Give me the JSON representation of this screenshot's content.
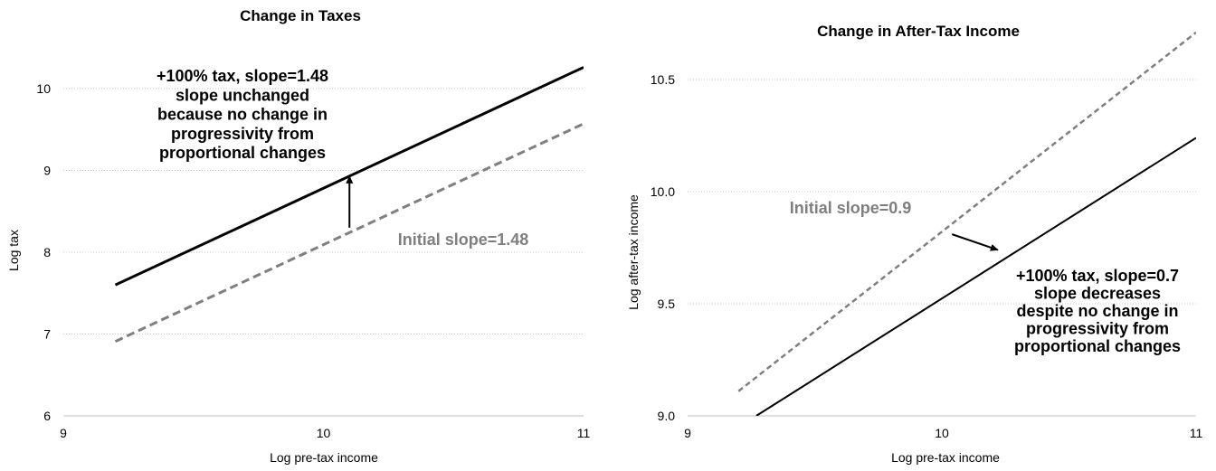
{
  "chart_data": [
    {
      "type": "line",
      "title": "Change in Taxes",
      "xlabel": "Log pre-tax income",
      "ylabel": "Log tax",
      "xlim": [
        9,
        11
      ],
      "ylim": [
        6,
        10.5
      ],
      "xticks": [
        9,
        10,
        11
      ],
      "yticks": [
        6,
        7,
        8,
        9,
        10
      ],
      "xtick_labels": [
        "9",
        "10",
        "11"
      ],
      "ytick_labels": [
        "6",
        "7",
        "8",
        "9",
        "10"
      ],
      "grid": "horizontal dotted",
      "series": [
        {
          "style": "solid",
          "color": "#000000",
          "x": [
            9.2,
            11
          ],
          "y": [
            7.6,
            10.26
          ]
        },
        {
          "style": "dashed",
          "color": "#7f7f7f",
          "x": [
            9.2,
            11
          ],
          "y": [
            6.91,
            9.57
          ]
        }
      ],
      "annotations": [
        {
          "lines": [
            "+100% tax, slope=1.48",
            "slope unchanged",
            "because no change in",
            "progressivity from",
            "proportional changes"
          ],
          "color": "#000000"
        },
        {
          "lines": [
            "Initial slope=1.48"
          ],
          "color": "#7f7f7f"
        }
      ],
      "arrow": {
        "from": [
          10.1,
          8.3
        ],
        "to": [
          10.1,
          8.93
        ]
      }
    },
    {
      "type": "line",
      "title": "Change in After-Tax Income",
      "xlabel": "Log pre-tax income",
      "ylabel": "Log after-tax income",
      "xlim": [
        9,
        11
      ],
      "ylim": [
        9.0,
        10.75
      ],
      "xticks": [
        9,
        10,
        11
      ],
      "yticks": [
        9.0,
        9.5,
        10.0,
        10.5
      ],
      "xtick_labels": [
        "9",
        "10",
        "11"
      ],
      "ytick_labels": [
        "9.0",
        "9.5",
        "10.0",
        "10.5"
      ],
      "grid": "horizontal dotted",
      "series": [
        {
          "style": "dashed",
          "color": "#7f7f7f",
          "x": [
            9.2,
            11
          ],
          "y": [
            9.11,
            10.71
          ]
        },
        {
          "style": "solid",
          "color": "#000000",
          "x": [
            9.27,
            11
          ],
          "y": [
            9.0,
            10.24
          ]
        }
      ],
      "annotations": [
        {
          "lines": [
            "Initial slope=0.9"
          ],
          "color": "#7f7f7f"
        },
        {
          "lines": [
            "+100% tax, slope=0.7",
            "slope decreases",
            "despite no change in",
            "progressivity from",
            "proportional changes"
          ],
          "color": "#000000"
        }
      ],
      "arrow": {
        "from": [
          10.04,
          9.81
        ],
        "to": [
          10.22,
          9.74
        ]
      }
    }
  ]
}
